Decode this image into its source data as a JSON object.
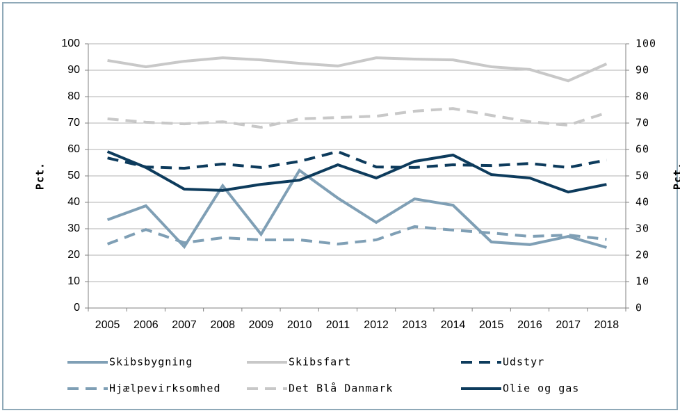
{
  "chart_data": {
    "type": "line",
    "y_label": "Pct.",
    "y2_label": "Pct.",
    "categories": [
      "2005",
      "2006",
      "2007",
      "2008",
      "2009",
      "2010",
      "2011",
      "2012",
      "2013",
      "2014",
      "2015",
      "2016",
      "2017",
      "2018"
    ],
    "series": [
      {
        "name": "Skibsbygning",
        "color": "#7f9fb5",
        "dash": false,
        "values": [
          33.4,
          38.7,
          23.2,
          46.3,
          27.9,
          52.1,
          41.6,
          32.4,
          41.3,
          38.9,
          25,
          24,
          27.1,
          22.9
        ]
      },
      {
        "name": "Skibsfart",
        "color": "#c8c8c8",
        "dash": false,
        "values": [
          93.7,
          91.3,
          93.4,
          94.7,
          93.9,
          92.6,
          91.6,
          94.7,
          94.2,
          93.9,
          91.3,
          90.3,
          86,
          92.4
        ]
      },
      {
        "name": "Udstyr",
        "color": "#0d3b5c",
        "dash": true,
        "values": [
          56.8,
          53.4,
          52.9,
          54.5,
          53.2,
          55.5,
          59.2,
          53.4,
          53.2,
          54.2,
          53.9,
          54.7,
          53.2,
          56
        ]
      },
      {
        "name": "Hjælpevirksomhed",
        "color": "#7f9fb5",
        "dash": true,
        "values": [
          24.2,
          29.7,
          24.7,
          26.6,
          25.8,
          25.8,
          24.2,
          25.8,
          30.8,
          29.5,
          28.4,
          27.1,
          27.6,
          26
        ]
      },
      {
        "name": "Det Blå Danmark",
        "color": "#c8c8c8",
        "dash": true,
        "values": [
          71.6,
          70.3,
          69.7,
          70.5,
          68.4,
          71.6,
          72.1,
          72.6,
          74.5,
          75.5,
          72.9,
          70.5,
          69.2,
          73.9
        ]
      },
      {
        "name": "Olie og gas",
        "color": "#0d3b5c",
        "dash": false,
        "values": [
          59.2,
          53.2,
          45,
          44.5,
          46.8,
          48.4,
          54.2,
          49.2,
          55.5,
          57.9,
          50.5,
          49.2,
          43.9,
          46.8
        ]
      }
    ],
    "ylim": [
      0,
      100
    ],
    "yticks": [
      0,
      10,
      20,
      30,
      40,
      50,
      60,
      70,
      80,
      90,
      100
    ],
    "y2lim": [
      0,
      100
    ],
    "y2ticks": [
      0,
      10,
      20,
      30,
      40,
      50,
      60,
      70,
      80,
      90,
      100
    ],
    "grid": true,
    "legend": "bottom"
  }
}
